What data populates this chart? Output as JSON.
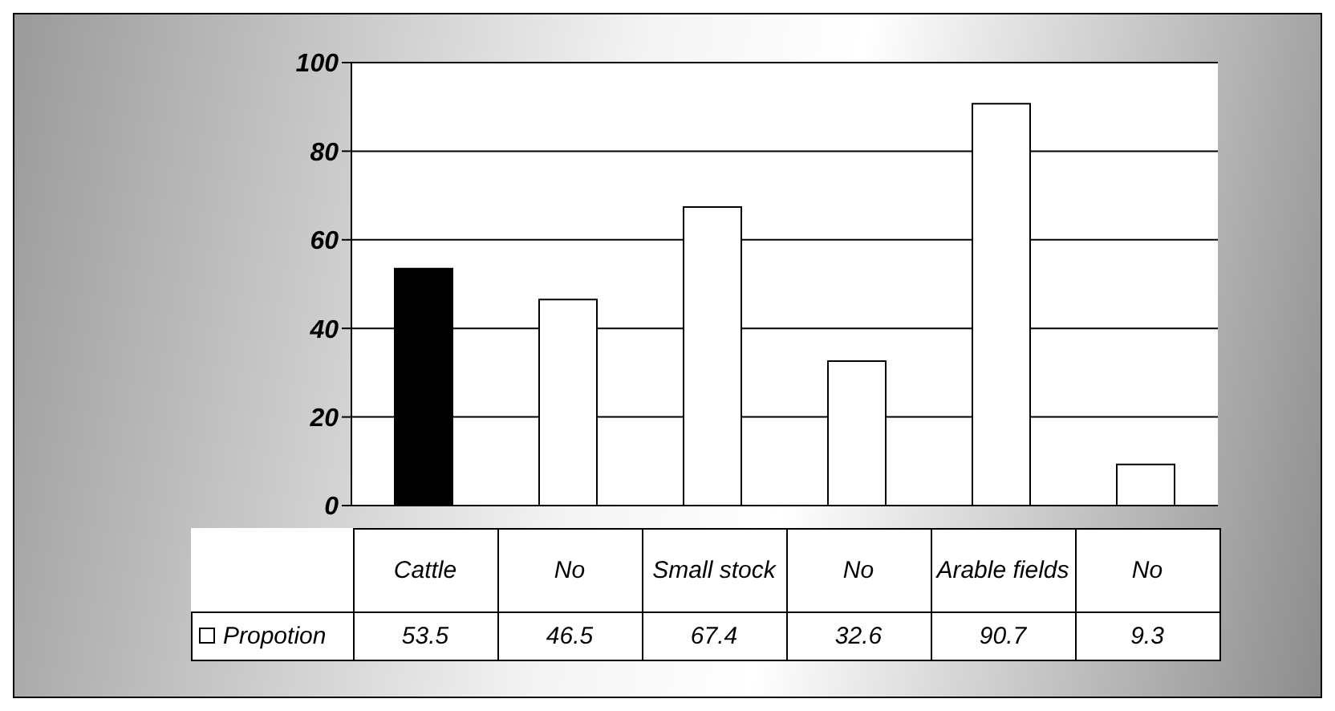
{
  "chart_data": {
    "type": "bar",
    "categories": [
      "Cattle",
      "No",
      "Small stock",
      "No",
      "Arable fields",
      "No"
    ],
    "series": [
      {
        "name": "Propotion",
        "color": "#ffffff",
        "colors": [
          "#000000",
          "#ffffff",
          "#ffffff",
          "#ffffff",
          "#ffffff",
          "#ffffff"
        ],
        "values": [
          53.5,
          46.5,
          67.4,
          32.6,
          90.7,
          9.3
        ]
      }
    ],
    "ylim": [
      0,
      100
    ],
    "yticks": [
      0,
      20,
      40,
      60,
      80,
      100
    ],
    "grid": "y",
    "legend": "bottom left",
    "data_labels": true
  }
}
